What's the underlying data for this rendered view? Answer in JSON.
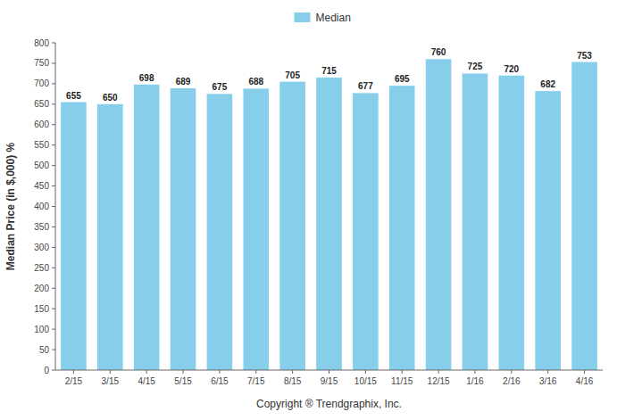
{
  "chart_data": {
    "type": "bar",
    "categories": [
      "2/15",
      "3/15",
      "4/15",
      "5/15",
      "6/15",
      "7/15",
      "8/15",
      "9/15",
      "10/15",
      "11/15",
      "12/15",
      "1/16",
      "2/16",
      "3/16",
      "4/16"
    ],
    "series": [
      {
        "name": "Median",
        "color": "#87CEEB",
        "values": [
          655,
          650,
          698,
          689,
          675,
          688,
          705,
          715,
          677,
          695,
          760,
          725,
          720,
          682,
          753
        ]
      }
    ],
    "ylabel": "Median Price (in $,000) %",
    "xlabel": "Copyright ® Trendgraphix, Inc.",
    "ylim": [
      0,
      800
    ],
    "yticks": [
      0,
      50,
      100,
      150,
      200,
      250,
      300,
      350,
      400,
      450,
      500,
      550,
      600,
      650,
      700,
      750,
      800
    ],
    "grid": false,
    "legend": "top",
    "data_labels": true
  }
}
